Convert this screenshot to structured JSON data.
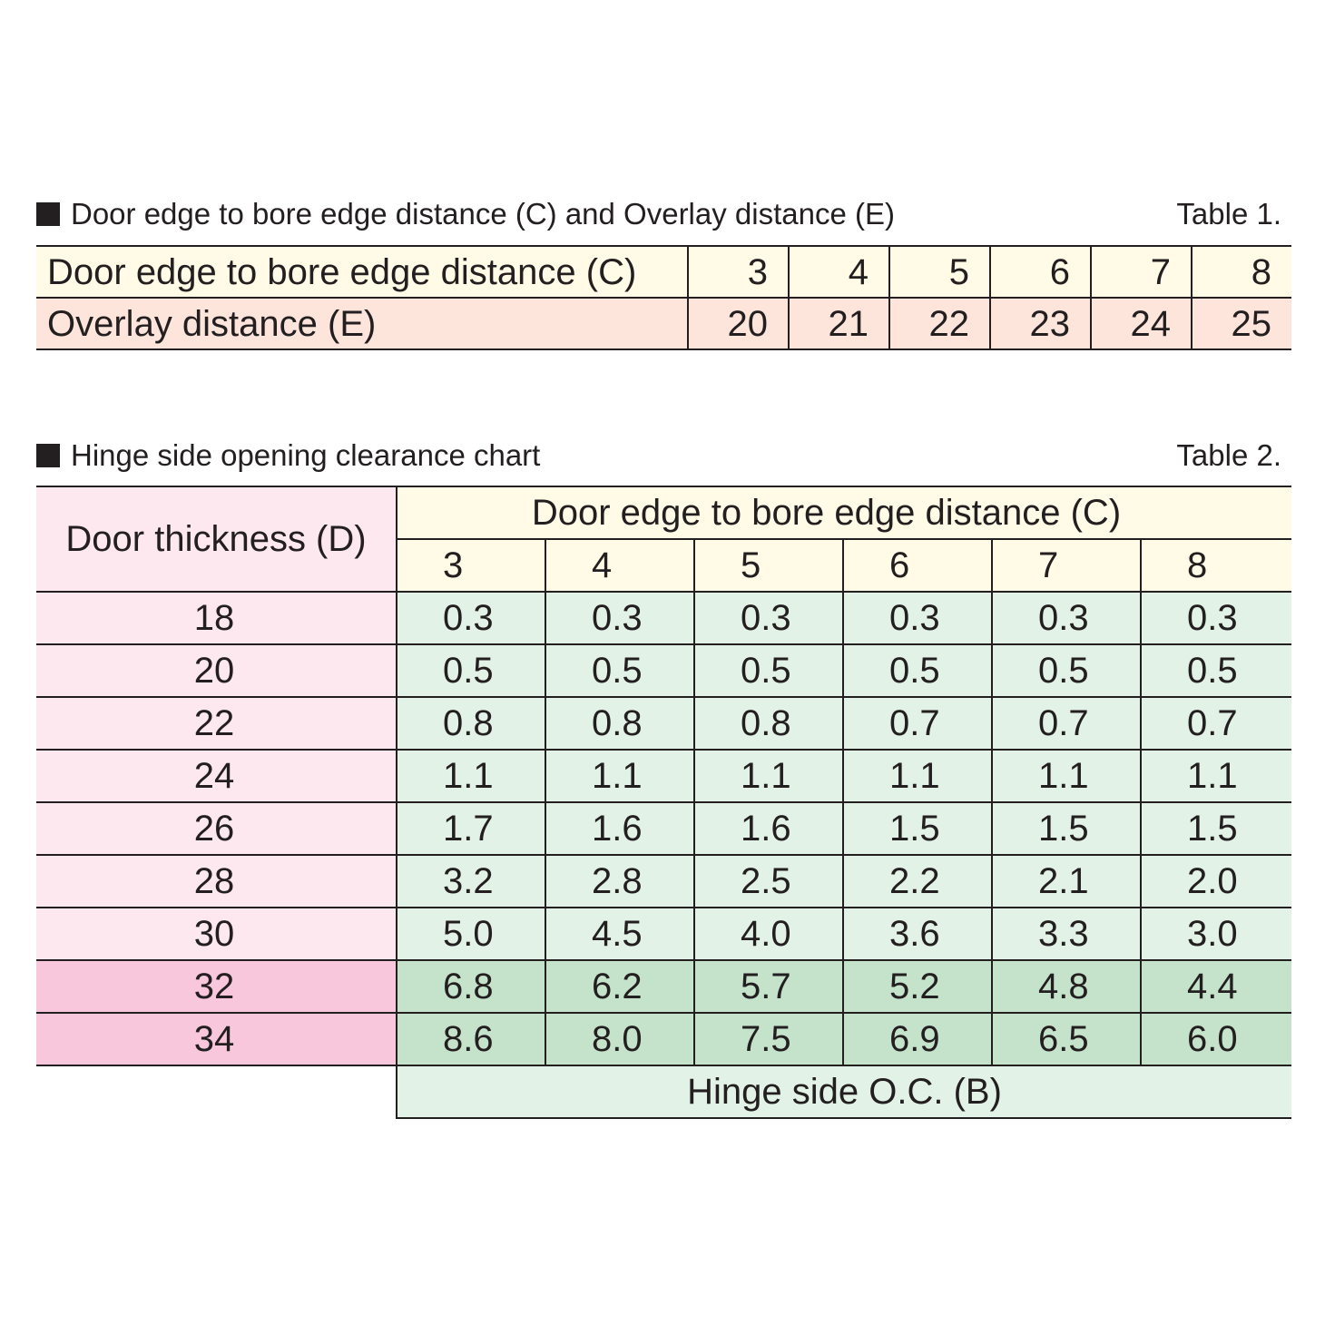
{
  "table1": {
    "title": "Door edge to bore edge distance (C) and Overlay distance (E)",
    "number": "Table 1.",
    "row_c_label": "Door edge to bore edge distance (C)",
    "row_e_label": "Overlay distance (E)",
    "c_values": [
      "3",
      "4",
      "5",
      "6",
      "7",
      "8"
    ],
    "e_values": [
      "20",
      "21",
      "22",
      "23",
      "24",
      "25"
    ]
  },
  "table2": {
    "title": "Hinge side opening clearance chart",
    "number": "Table 2.",
    "thickness_header": "Door thickness (D)",
    "c_header": "Door edge to bore edge distance (C)",
    "c_values": [
      "3",
      "4",
      "5",
      "6",
      "7",
      "8"
    ],
    "rows": [
      {
        "thickness": "18",
        "values": [
          "0.3",
          "0.3",
          "0.3",
          "0.3",
          "0.3",
          "0.3"
        ]
      },
      {
        "thickness": "20",
        "values": [
          "0.5",
          "0.5",
          "0.5",
          "0.5",
          "0.5",
          "0.5"
        ]
      },
      {
        "thickness": "22",
        "values": [
          "0.8",
          "0.8",
          "0.8",
          "0.7",
          "0.7",
          "0.7"
        ]
      },
      {
        "thickness": "24",
        "values": [
          "1.1",
          "1.1",
          "1.1",
          "1.1",
          "1.1",
          "1.1"
        ]
      },
      {
        "thickness": "26",
        "values": [
          "1.7",
          "1.6",
          "1.6",
          "1.5",
          "1.5",
          "1.5"
        ]
      },
      {
        "thickness": "28",
        "values": [
          "3.2",
          "2.8",
          "2.5",
          "2.2",
          "2.1",
          "2.0"
        ]
      },
      {
        "thickness": "30",
        "values": [
          "5.0",
          "4.5",
          "4.0",
          "3.6",
          "3.3",
          "3.0"
        ]
      },
      {
        "thickness": "32",
        "values": [
          "6.8",
          "6.2",
          "5.7",
          "5.2",
          "4.8",
          "4.4"
        ]
      },
      {
        "thickness": "34",
        "values": [
          "8.6",
          "8.0",
          "7.5",
          "6.9",
          "6.5",
          "6.0"
        ]
      }
    ],
    "footer": "Hinge side O.C. (B)"
  },
  "colors": {
    "cream": "#fffbe6",
    "peach": "#fde5dc",
    "light_pink": "#fde8ef",
    "dark_pink": "#f9c7dc",
    "light_green": "#e3f2e6",
    "dark_green": "#c5e3cb"
  }
}
